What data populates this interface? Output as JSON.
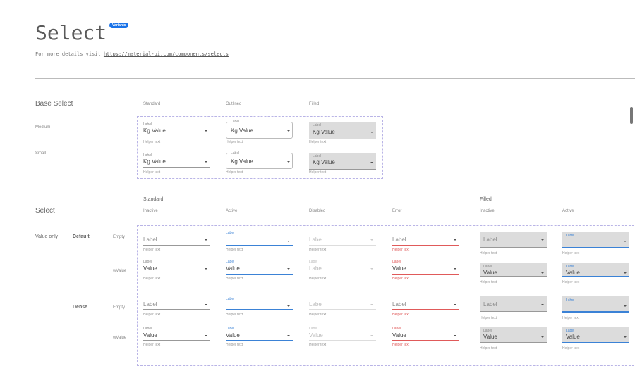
{
  "header": {
    "title": "Select",
    "badge": "Variants",
    "description": "For more details visit ",
    "link": "https://material-ui.com/components/selects"
  },
  "base": {
    "title": "Base Select",
    "columns": [
      "Standard",
      "Outlined",
      "Filled"
    ],
    "rows": [
      "Medium",
      "Small"
    ],
    "label": "Label",
    "prefix": "Kg",
    "value": "Value",
    "helper": "Helper text"
  },
  "select": {
    "title": "Select",
    "group_standard": "Standard",
    "group_filled": "Filled",
    "columns": [
      "Inactive",
      "Active",
      "Disabled",
      "Error",
      "Inactive",
      "Active"
    ],
    "category": "Value only",
    "sizes": [
      "Default",
      "Dense"
    ],
    "row_types": [
      "Empty",
      "wValue"
    ],
    "label": "Label",
    "value": "Value",
    "helper": "Helper text",
    "disabled_default_value": "Label"
  },
  "colors": {
    "accent": "#1a73e8",
    "active": "#3b82d6",
    "error": "#e05a5a",
    "filled_bg": "#dcdcdc",
    "dash": "#b9b4e6"
  }
}
